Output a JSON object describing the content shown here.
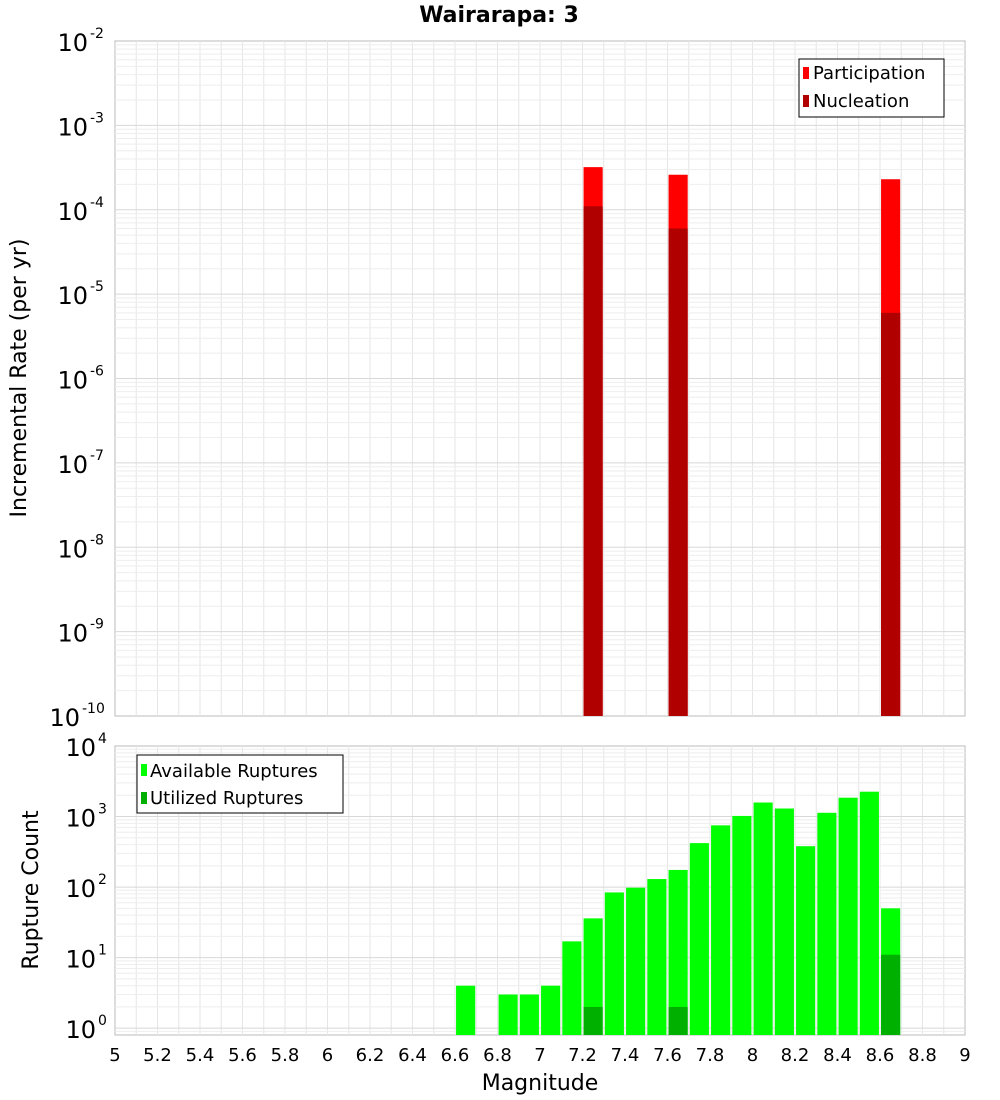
{
  "title": "Wairarapa: 3",
  "xlabel": "Magnitude",
  "colors": {
    "participation": "#ff0000",
    "nucleation": "#b00000",
    "available": "#00ff00",
    "utilized": "#00b000",
    "grid": "#e6e6e6",
    "frame": "#bbbbbb"
  },
  "chart_data": [
    {
      "type": "bar",
      "name": "rate-panel",
      "ylabel": "Incremental Rate (per yr)",
      "yscale": "log",
      "ylim": [
        1e-10,
        0.01
      ],
      "xlim": [
        5,
        9
      ],
      "bar_width": 0.09,
      "legend": {
        "position": "top-right",
        "entries": [
          "Participation",
          "Nucleation"
        ]
      },
      "y_ticks": [
        {
          "base": "10",
          "exp": "-2"
        },
        {
          "base": "10",
          "exp": "-3"
        },
        {
          "base": "10",
          "exp": "-4"
        },
        {
          "base": "10",
          "exp": "-5"
        },
        {
          "base": "10",
          "exp": "-6"
        },
        {
          "base": "10",
          "exp": "-7"
        },
        {
          "base": "10",
          "exp": "-8"
        },
        {
          "base": "10",
          "exp": "-9"
        },
        {
          "base": "10",
          "exp": "-10"
        }
      ],
      "x": [
        7.25,
        7.65,
        8.65
      ],
      "series": [
        {
          "name": "Participation",
          "values": [
            0.00032,
            0.00026,
            0.00023
          ]
        },
        {
          "name": "Nucleation",
          "values": [
            0.00011,
            6e-05,
            6e-06
          ]
        }
      ]
    },
    {
      "type": "bar",
      "name": "count-panel",
      "ylabel": "Rupture Count",
      "yscale": "log",
      "ylim": [
        0.8,
        10000
      ],
      "xlim": [
        5,
        9
      ],
      "bar_width": 0.09,
      "legend": {
        "position": "top-left",
        "entries": [
          "Available Ruptures",
          "Utilized Ruptures"
        ]
      },
      "y_ticks": [
        {
          "base": "10",
          "exp": "4"
        },
        {
          "base": "10",
          "exp": "3"
        },
        {
          "base": "10",
          "exp": "2"
        },
        {
          "base": "10",
          "exp": "1"
        },
        {
          "base": "10",
          "exp": "0"
        }
      ],
      "x_ticks": [
        "5",
        "5.2",
        "5.4",
        "5.6",
        "5.8",
        "6",
        "6.2",
        "6.4",
        "6.6",
        "6.8",
        "7",
        "7.2",
        "7.4",
        "7.6",
        "7.8",
        "8",
        "8.2",
        "8.4",
        "8.6",
        "8.8",
        "9"
      ],
      "x": [
        6.65,
        6.85,
        6.95,
        7.05,
        7.15,
        7.25,
        7.35,
        7.45,
        7.55,
        7.65,
        7.75,
        7.85,
        7.95,
        8.05,
        8.15,
        8.25,
        8.35,
        8.45,
        8.55,
        8.65
      ],
      "series": [
        {
          "name": "Available Ruptures",
          "values": [
            4,
            3,
            3,
            4,
            17,
            36,
            84,
            98,
            130,
            175,
            420,
            750,
            1020,
            1580,
            1300,
            380,
            1130,
            1850,
            2250,
            50
          ]
        },
        {
          "name": "Utilized Ruptures",
          "values": [
            0,
            0,
            0,
            0,
            0,
            2,
            0,
            0,
            0,
            2,
            0,
            0,
            0,
            0,
            0,
            0,
            0,
            0,
            0,
            11
          ]
        }
      ]
    }
  ]
}
